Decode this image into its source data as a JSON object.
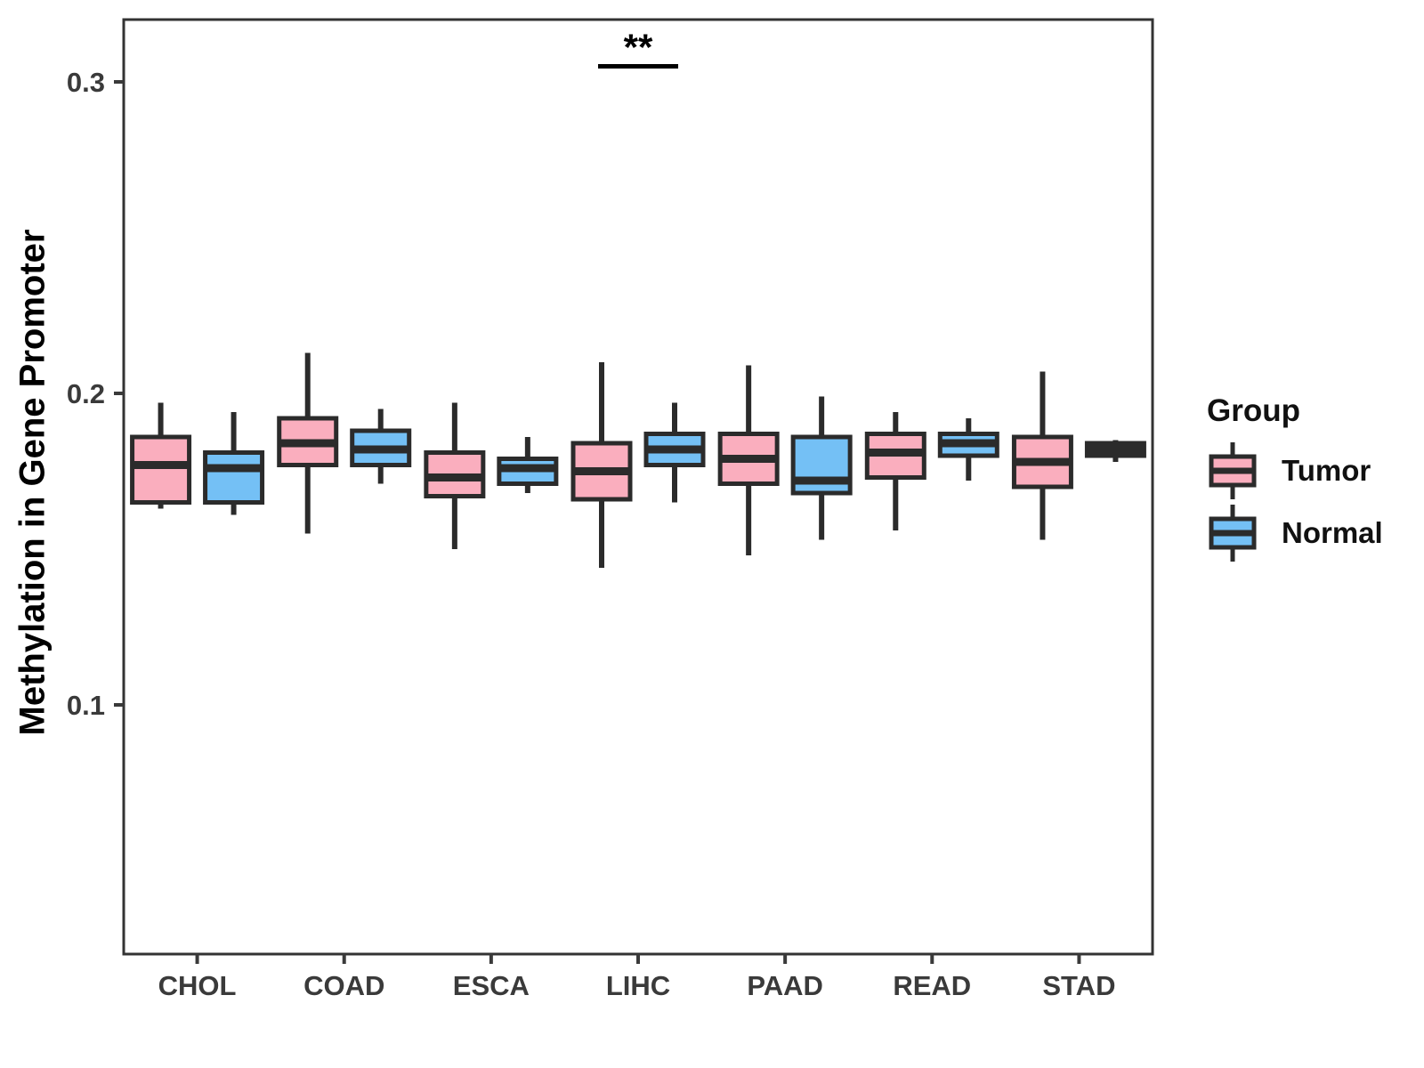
{
  "chart_data": {
    "type": "boxplot",
    "title": "",
    "xlabel": "",
    "ylabel": "Methylation in Gene Promoter",
    "legend_title": "Group",
    "legend_position": "right",
    "grid": false,
    "categories": [
      "CHOL",
      "COAD",
      "ESCA",
      "LIHC",
      "PAAD",
      "READ",
      "STAD"
    ],
    "groups": [
      "Tumor",
      "Normal"
    ],
    "yticks": [
      "0.1",
      "0.2",
      "0.3"
    ],
    "ytick_values": [
      0.1,
      0.2,
      0.3
    ],
    "ylim": [
      0.02,
      0.32
    ],
    "colors": {
      "tumor_fill": "#FAAEBE",
      "normal_fill": "#74C0F5",
      "box_stroke": "#2B2B2B",
      "axis_text": "#3A3A3A",
      "panel_border": "#333333",
      "annotation": "#000000"
    },
    "series": [
      {
        "name": "Tumor",
        "color": "#FAAEBE",
        "boxes": [
          {
            "category": "CHOL",
            "whisker_low": 0.163,
            "q1": 0.165,
            "median": 0.177,
            "q3": 0.186,
            "whisker_high": 0.197
          },
          {
            "category": "COAD",
            "whisker_low": 0.155,
            "q1": 0.177,
            "median": 0.184,
            "q3": 0.192,
            "whisker_high": 0.213
          },
          {
            "category": "ESCA",
            "whisker_low": 0.15,
            "q1": 0.167,
            "median": 0.173,
            "q3": 0.181,
            "whisker_high": 0.197
          },
          {
            "category": "LIHC",
            "whisker_low": 0.144,
            "q1": 0.166,
            "median": 0.175,
            "q3": 0.184,
            "whisker_high": 0.21
          },
          {
            "category": "PAAD",
            "whisker_low": 0.148,
            "q1": 0.171,
            "median": 0.179,
            "q3": 0.187,
            "whisker_high": 0.209
          },
          {
            "category": "READ",
            "whisker_low": 0.156,
            "q1": 0.173,
            "median": 0.181,
            "q3": 0.187,
            "whisker_high": 0.194
          },
          {
            "category": "STAD",
            "whisker_low": 0.153,
            "q1": 0.17,
            "median": 0.178,
            "q3": 0.186,
            "whisker_high": 0.207
          }
        ]
      },
      {
        "name": "Normal",
        "color": "#74C0F5",
        "boxes": [
          {
            "category": "CHOL",
            "whisker_low": 0.161,
            "q1": 0.165,
            "median": 0.176,
            "q3": 0.181,
            "whisker_high": 0.194
          },
          {
            "category": "COAD",
            "whisker_low": 0.171,
            "q1": 0.177,
            "median": 0.182,
            "q3": 0.188,
            "whisker_high": 0.195
          },
          {
            "category": "ESCA",
            "whisker_low": 0.168,
            "q1": 0.171,
            "median": 0.176,
            "q3": 0.179,
            "whisker_high": 0.186
          },
          {
            "category": "LIHC",
            "whisker_low": 0.165,
            "q1": 0.177,
            "median": 0.182,
            "q3": 0.187,
            "whisker_high": 0.197
          },
          {
            "category": "PAAD",
            "whisker_low": 0.153,
            "q1": 0.168,
            "median": 0.172,
            "q3": 0.186,
            "whisker_high": 0.199
          },
          {
            "category": "READ",
            "whisker_low": 0.172,
            "q1": 0.18,
            "median": 0.184,
            "q3": 0.187,
            "whisker_high": 0.192
          },
          {
            "category": "STAD",
            "whisker_low": 0.178,
            "q1": 0.18,
            "median": 0.182,
            "q3": 0.184,
            "whisker_high": 0.185
          }
        ]
      }
    ],
    "annotations": [
      {
        "text": "**",
        "category": "LIHC",
        "line_y": 0.305,
        "text_y": 0.311
      }
    ]
  }
}
